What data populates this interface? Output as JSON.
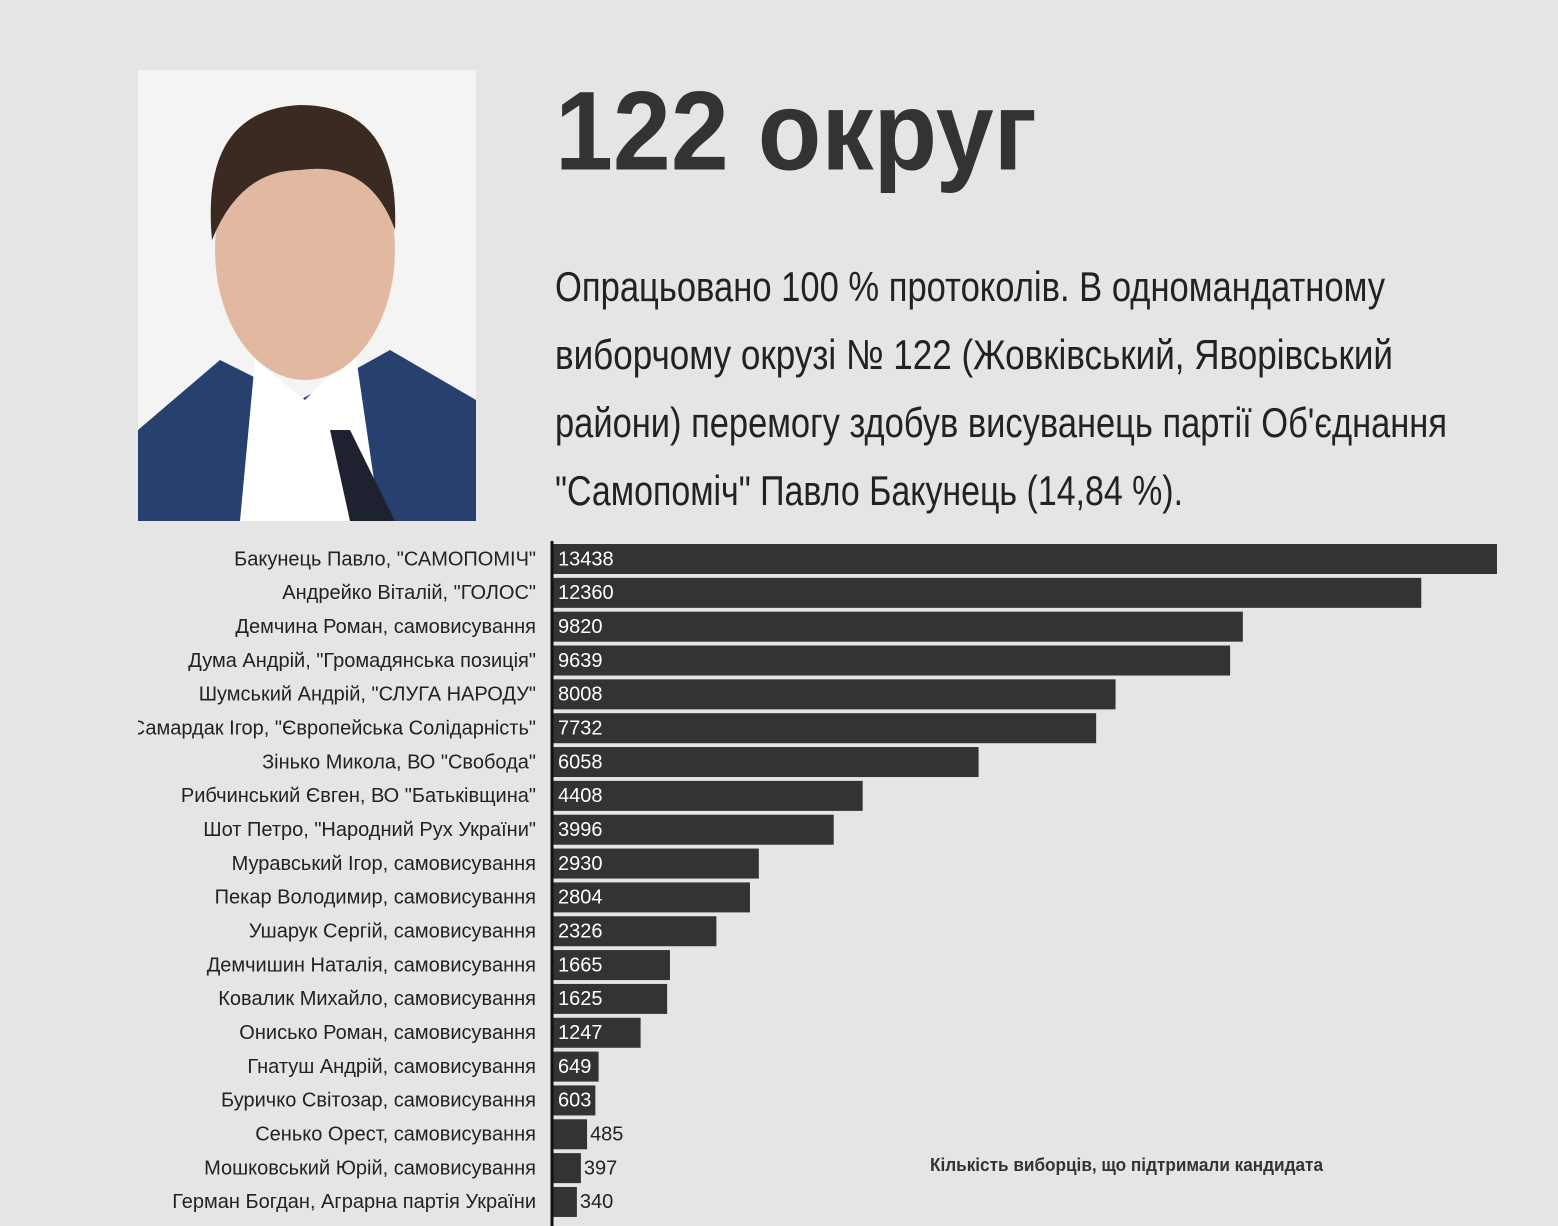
{
  "chart_data": {
    "type": "bar",
    "orientation": "horizontal",
    "title": "122 округ",
    "subtitle": [
      "Опрацьовано 100 % протоколів. В одномандатному",
      "виборчому окрузі № 122 (Жовківський, Яворівський",
      "райони) перемогу здобув висуванець партії Об'єднання",
      "\"Самопоміч\" Павло Бакунець (14,84 %)."
    ],
    "x_label": "Кількість виборців, що підтримали кандидата",
    "categories": [
      "Бакунець Павло, \"САМОПОМІЧ\"",
      "Андрейко Віталій, \"ГОЛОС\"",
      "Демчина Роман, самовисування",
      "Дума Андрій, \"Громадянська позиція\"",
      "Шумський Андрій, \"СЛУГА НАРОДУ\"",
      "Самардак Ігор, \"Європейська Солідарність\"",
      "Зінько Микола, ВО \"Свобода\"",
      "Рибчинський Євген, ВО \"Батьківщина\"",
      "Шот Петро, \"Народний Рух України\"",
      "Муравський Ігор, самовисування",
      "Пекар Володимир, самовисування",
      "Ушарук Сергій, самовисування",
      "Демчишин Наталія, самовисування",
      "Ковалик Михайло, самовисування",
      "Онисько Роман, самовисування",
      "Гнатуш Андрій, самовисування",
      "Буричко Світозар, самовисування",
      "Сенько Орест, самовисування",
      "Мошковський Юрій, самовисування",
      "Герман Богдан, Аграрна партія України"
    ],
    "values": [
      13438,
      12360,
      9820,
      9639,
      8008,
      7732,
      6058,
      4408,
      3996,
      2930,
      2804,
      2326,
      1665,
      1625,
      1247,
      649,
      603,
      485,
      397,
      340
    ],
    "color": "#333333",
    "xlim": [
      0,
      13438
    ]
  }
}
